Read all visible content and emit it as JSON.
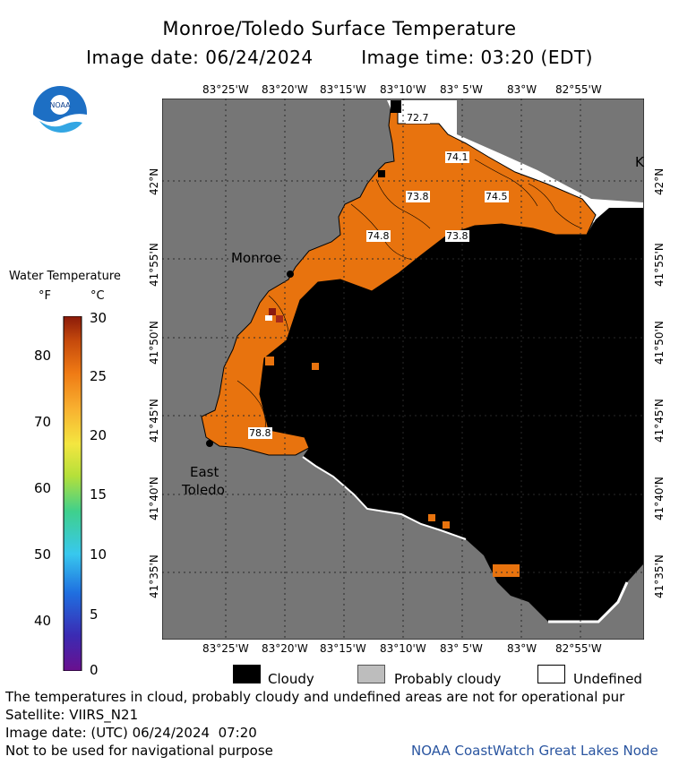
{
  "title": "Monroe/Toledo Surface Temperature",
  "image_date_label": "Image date: 06/24/2024",
  "image_time_label": "Image time: 03:20 (EDT)",
  "logo_text": "NOAA",
  "lon_labels_top": [
    "83°25'W",
    "83°20'W",
    "83°15'W",
    "83°10'W",
    "83° 5'W",
    "83°W",
    "82°55'W"
  ],
  "lon_labels_bottom": [
    "83°25'W",
    "83°20'W",
    "83°15'W",
    "83°10'W",
    "83° 5'W",
    "83°W",
    "82°55'W"
  ],
  "lat_labels_left": [
    "42°N",
    "41°55'N",
    "41°50'N",
    "41°45'N",
    "41°40'N",
    "41°35'N"
  ],
  "lat_labels_right": [
    "42°N",
    "41°55'N",
    "41°50'N",
    "41°45'N",
    "41°40'N",
    "41°35'N"
  ],
  "places": {
    "monroe": "Monroe",
    "east_toledo_1": "East",
    "east_toledo_2": "Toledo",
    "k": "K"
  },
  "temperature_labels": [
    "72.7",
    "74.1",
    "73.8",
    "74.5",
    "74.8",
    "73.8",
    "78.8"
  ],
  "legend": {
    "title": "Water Temperature",
    "unit_f": "°F",
    "unit_c": "°C",
    "f_ticks": [
      "80",
      "70",
      "60",
      "50",
      "40"
    ],
    "c_ticks": [
      "30",
      "25",
      "20",
      "15",
      "10",
      "5",
      "0"
    ]
  },
  "key": {
    "cloudy": "Cloudy",
    "probably_cloudy": "Probably cloudy",
    "undefined": "Undefined"
  },
  "colors": {
    "land": "#767676",
    "cloud": "#000000",
    "water_warm": "#e8730e",
    "undefined": "#ffffff",
    "probably_cloudy": "#bdbdbd"
  },
  "footer": {
    "note": "The temperatures in cloud, probably cloudy and undefined areas are not for operational pur",
    "satellite": "Satellite: VIIRS_N21",
    "utc_date": "Image date: (UTC) 06/24/2024  07:20",
    "nav_warning": "Not to be used for navigational purpose",
    "credit": "NOAA CoastWatch Great Lakes Node"
  }
}
